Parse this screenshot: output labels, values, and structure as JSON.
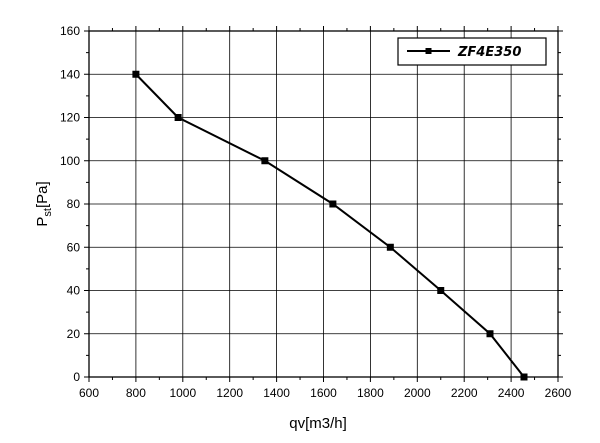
{
  "chart_data": {
    "type": "line",
    "xlabel": "qv[m3/h]",
    "ylabel": "Pst[Pa]",
    "ylabel_main": "P",
    "ylabel_sub": "st",
    "ylabel_rest": "[Pa]",
    "xlim": [
      600,
      2600
    ],
    "ylim": [
      0,
      160
    ],
    "x_ticks": [
      600,
      800,
      1000,
      1200,
      1400,
      1600,
      1800,
      2000,
      2200,
      2400,
      2600
    ],
    "y_ticks": [
      0,
      20,
      40,
      60,
      80,
      100,
      120,
      140,
      160
    ],
    "grid": true,
    "legend_position": "top-right",
    "series": [
      {
        "name": "ZF4E350",
        "color": "#000000",
        "marker": "square",
        "x": [
          800,
          980,
          1350,
          1640,
          1885,
          2100,
          2310,
          2455
        ],
        "y": [
          140,
          120,
          100,
          80,
          60,
          40,
          20,
          0
        ]
      }
    ]
  }
}
